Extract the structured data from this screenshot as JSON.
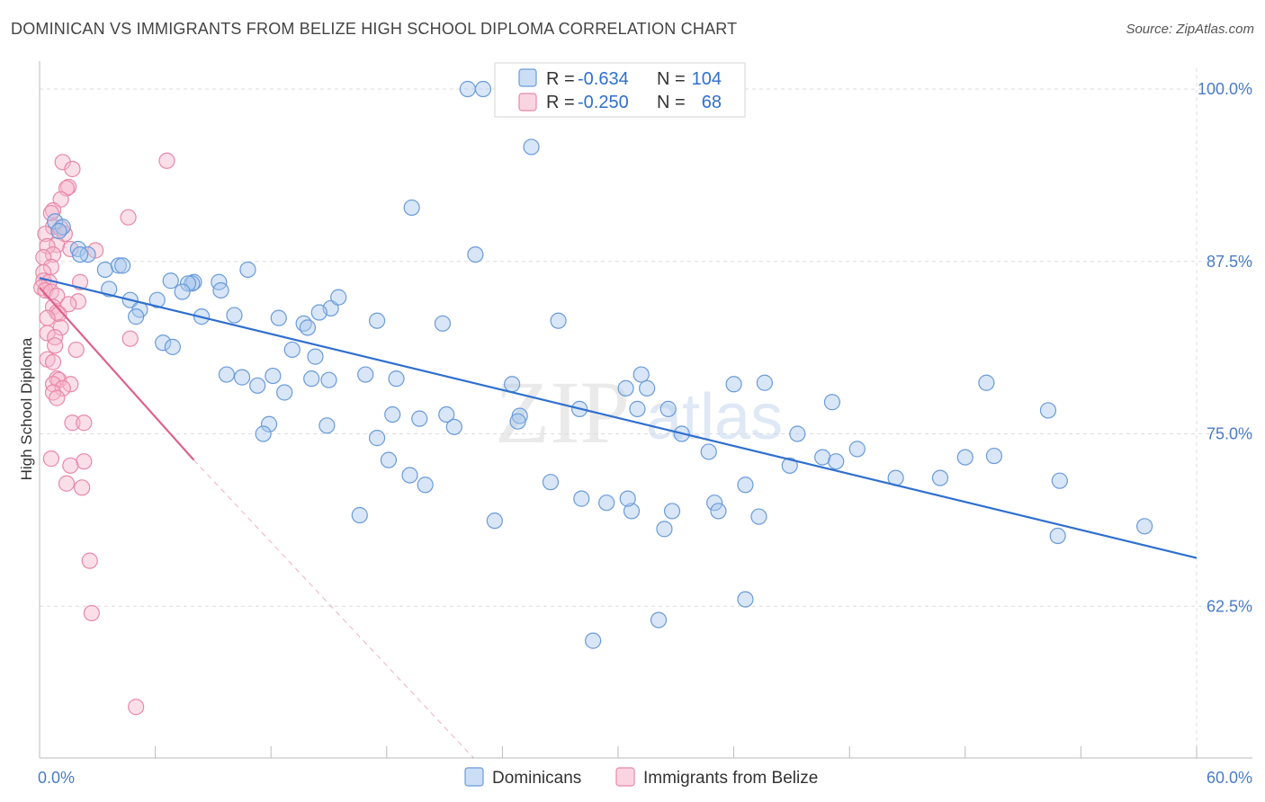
{
  "title": "DOMINICAN VS IMMIGRANTS FROM BELIZE HIGH SCHOOL DIPLOMA CORRELATION CHART",
  "source": "Source: ZipAtlas.com",
  "watermark": {
    "zip": "ZIP",
    "atlas": "atlas"
  },
  "colors": {
    "blue_fill": "#a9c8ee",
    "blue_stroke": "#6a9bd9",
    "blue_line": "#2f6fcf",
    "pink_fill": "#f7b9cd",
    "pink_stroke": "#e888a8",
    "pink_line": "#e0608c",
    "grid": "#dddddd",
    "axis_text": "#4a7cc9"
  },
  "stats_box": {
    "rows": [
      {
        "r_label": "R =",
        "r_value": "-0.634",
        "n_label": "N =",
        "n_value": "104"
      },
      {
        "r_label": "R =",
        "r_value": "-0.250",
        "n_label": "N =",
        "n_value": "68"
      }
    ]
  },
  "chart_data": {
    "type": "scatter",
    "title": "DOMINICAN VS IMMIGRANTS FROM BELIZE HIGH SCHOOL DIPLOMA CORRELATION CHART",
    "xlabel": "",
    "ylabel": "High School Diploma",
    "xlim": [
      0,
      60
    ],
    "ylim": [
      51.5,
      101.5
    ],
    "x_tick_labels": [
      {
        "value": 0,
        "label": "0.0%"
      },
      {
        "value": 60,
        "label": "60.0%"
      }
    ],
    "y_tick_labels": [
      {
        "value": 100,
        "label": "100.0%"
      },
      {
        "value": 87.5,
        "label": "87.5%"
      },
      {
        "value": 75,
        "label": "75.0%"
      },
      {
        "value": 62.5,
        "label": "62.5%"
      }
    ],
    "x_minor_ticks": [
      0,
      6,
      12,
      18,
      24,
      30,
      36,
      42,
      48,
      54,
      60
    ],
    "grid": true,
    "legend_position": "bottom",
    "series": [
      {
        "name": "Dominicans",
        "trend": {
          "x": [
            0,
            60
          ],
          "y": [
            86.3,
            66.0
          ],
          "dashed_extension": false
        },
        "points": [
          [
            22.2,
            100.0
          ],
          [
            23.0,
            100.0
          ],
          [
            25.5,
            95.8
          ],
          [
            19.3,
            91.4
          ],
          [
            22.6,
            88.0
          ],
          [
            0.8,
            90.4
          ],
          [
            1.2,
            90.0
          ],
          [
            1.0,
            89.7
          ],
          [
            2.0,
            88.4
          ],
          [
            2.5,
            88.0
          ],
          [
            2.1,
            88.0
          ],
          [
            3.4,
            86.9
          ],
          [
            4.1,
            87.2
          ],
          [
            4.3,
            87.2
          ],
          [
            10.8,
            86.9
          ],
          [
            9.3,
            86.0
          ],
          [
            8.0,
            86.0
          ],
          [
            7.9,
            85.9
          ],
          [
            7.7,
            85.9
          ],
          [
            6.8,
            86.1
          ],
          [
            7.4,
            85.3
          ],
          [
            9.4,
            85.4
          ],
          [
            3.6,
            85.5
          ],
          [
            4.7,
            84.7
          ],
          [
            6.1,
            84.7
          ],
          [
            5.2,
            84.0
          ],
          [
            5.0,
            83.5
          ],
          [
            8.4,
            83.5
          ],
          [
            10.1,
            83.6
          ],
          [
            12.4,
            83.4
          ],
          [
            15.1,
            84.1
          ],
          [
            15.5,
            84.9
          ],
          [
            14.5,
            83.8
          ],
          [
            17.5,
            83.2
          ],
          [
            20.9,
            83.0
          ],
          [
            13.7,
            83.0
          ],
          [
            13.9,
            82.7
          ],
          [
            26.9,
            83.2
          ],
          [
            6.4,
            81.6
          ],
          [
            6.9,
            81.3
          ],
          [
            13.1,
            81.1
          ],
          [
            14.3,
            80.6
          ],
          [
            9.7,
            79.3
          ],
          [
            10.5,
            79.1
          ],
          [
            12.1,
            79.2
          ],
          [
            14.1,
            79.0
          ],
          [
            15.0,
            78.9
          ],
          [
            16.9,
            79.3
          ],
          [
            18.5,
            79.0
          ],
          [
            11.3,
            78.5
          ],
          [
            12.7,
            78.0
          ],
          [
            24.5,
            78.6
          ],
          [
            30.4,
            78.3
          ],
          [
            31.2,
            79.3
          ],
          [
            31.5,
            78.3
          ],
          [
            33.3,
            75.0
          ],
          [
            34.7,
            73.7
          ],
          [
            31.0,
            76.8
          ],
          [
            32.6,
            76.8
          ],
          [
            36.0,
            78.6
          ],
          [
            37.6,
            78.7
          ],
          [
            38.9,
            72.7
          ],
          [
            18.3,
            76.4
          ],
          [
            21.1,
            76.4
          ],
          [
            21.5,
            75.5
          ],
          [
            24.9,
            76.3
          ],
          [
            24.8,
            75.9
          ],
          [
            28.0,
            76.8
          ],
          [
            19.7,
            76.1
          ],
          [
            11.9,
            75.7
          ],
          [
            11.6,
            75.0
          ],
          [
            14.9,
            75.6
          ],
          [
            17.5,
            74.7
          ],
          [
            18.1,
            73.1
          ],
          [
            19.2,
            72.0
          ],
          [
            20.0,
            71.3
          ],
          [
            26.5,
            71.5
          ],
          [
            28.1,
            70.3
          ],
          [
            29.4,
            70.0
          ],
          [
            30.7,
            69.4
          ],
          [
            32.8,
            69.4
          ],
          [
            16.6,
            69.1
          ],
          [
            23.6,
            68.7
          ],
          [
            32.4,
            68.1
          ],
          [
            35.0,
            70.0
          ],
          [
            36.6,
            71.3
          ],
          [
            37.3,
            69.0
          ],
          [
            39.3,
            75.0
          ],
          [
            40.6,
            73.3
          ],
          [
            41.3,
            73.0
          ],
          [
            42.4,
            73.9
          ],
          [
            44.4,
            71.8
          ],
          [
            46.7,
            71.8
          ],
          [
            48.0,
            73.3
          ],
          [
            49.5,
            73.4
          ],
          [
            49.1,
            78.7
          ],
          [
            41.1,
            77.3
          ],
          [
            52.3,
            76.7
          ],
          [
            52.9,
            71.6
          ],
          [
            52.8,
            67.6
          ],
          [
            57.3,
            68.3
          ],
          [
            35.2,
            69.4
          ],
          [
            36.6,
            63.0
          ],
          [
            32.1,
            61.5
          ],
          [
            28.7,
            60.0
          ],
          [
            30.5,
            70.3
          ]
        ]
      },
      {
        "name": "Immigrants from Belize",
        "trend": {
          "x": [
            0,
            8
          ],
          "y": [
            85.6,
            73.1
          ],
          "dashed_extension": true,
          "dash_to": [
            22.5,
            51.5
          ]
        },
        "points": [
          [
            1.2,
            94.7
          ],
          [
            1.7,
            94.2
          ],
          [
            6.6,
            94.8
          ],
          [
            1.5,
            92.9
          ],
          [
            1.4,
            92.8
          ],
          [
            1.1,
            92.0
          ],
          [
            0.7,
            91.2
          ],
          [
            0.6,
            91.0
          ],
          [
            4.6,
            90.7
          ],
          [
            0.7,
            90.0
          ],
          [
            1.1,
            89.9
          ],
          [
            0.3,
            89.5
          ],
          [
            1.3,
            89.5
          ],
          [
            0.9,
            88.7
          ],
          [
            0.4,
            88.6
          ],
          [
            1.6,
            88.4
          ],
          [
            2.9,
            88.3
          ],
          [
            0.7,
            88.0
          ],
          [
            0.2,
            87.8
          ],
          [
            0.6,
            87.1
          ],
          [
            0.2,
            86.7
          ],
          [
            0.2,
            86.1
          ],
          [
            0.5,
            86.0
          ],
          [
            2.1,
            86.0
          ],
          [
            0.1,
            85.6
          ],
          [
            0.3,
            85.4
          ],
          [
            0.6,
            85.3
          ],
          [
            0.9,
            85.0
          ],
          [
            2.0,
            84.6
          ],
          [
            1.5,
            84.4
          ],
          [
            0.7,
            84.2
          ],
          [
            0.9,
            83.8
          ],
          [
            1.0,
            83.7
          ],
          [
            0.4,
            83.4
          ],
          [
            1.1,
            82.7
          ],
          [
            0.4,
            82.3
          ],
          [
            0.8,
            82.0
          ],
          [
            4.7,
            81.9
          ],
          [
            0.8,
            81.4
          ],
          [
            1.9,
            81.1
          ],
          [
            0.4,
            80.4
          ],
          [
            0.7,
            80.2
          ],
          [
            0.9,
            79.0
          ],
          [
            1.0,
            78.9
          ],
          [
            0.7,
            78.6
          ],
          [
            1.6,
            78.6
          ],
          [
            1.2,
            78.3
          ],
          [
            0.7,
            78.0
          ],
          [
            0.9,
            77.6
          ],
          [
            1.7,
            75.8
          ],
          [
            2.3,
            75.8
          ],
          [
            0.6,
            73.2
          ],
          [
            2.3,
            73.0
          ],
          [
            1.6,
            72.7
          ],
          [
            1.4,
            71.4
          ],
          [
            2.2,
            71.1
          ],
          [
            2.6,
            65.8
          ],
          [
            2.7,
            62.0
          ],
          [
            5.0,
            55.2
          ]
        ]
      }
    ]
  }
}
